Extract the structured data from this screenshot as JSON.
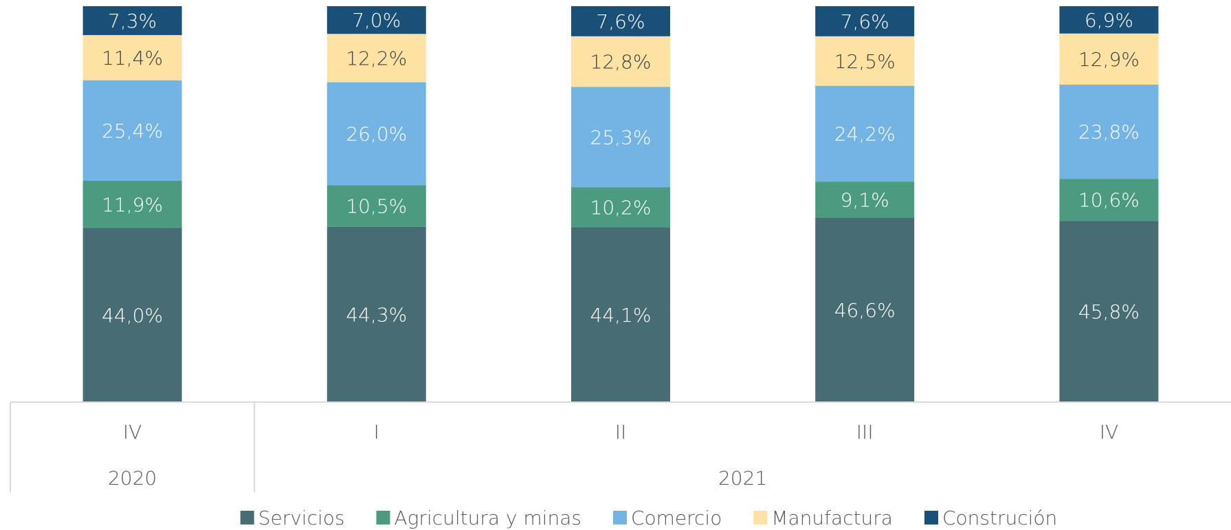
{
  "chart_data": {
    "type": "stacked_bar",
    "categories": [
      "IV",
      "I",
      "II",
      "III",
      "IV"
    ],
    "category_groups": [
      {
        "label": "2020",
        "count": 1
      },
      {
        "label": "2021",
        "count": 4
      }
    ],
    "ylim": [
      0,
      100
    ],
    "series": [
      {
        "name": "Servicios",
        "color": "#476c74",
        "label_color": "#ffffff",
        "values": [
          44.0,
          44.3,
          44.1,
          46.6,
          45.8
        ],
        "value_labels": [
          "44,0%",
          "44,3%",
          "44,1%",
          "46,6%",
          "45,8%"
        ]
      },
      {
        "name": "Agricultura y minas",
        "color": "#4a9b7f",
        "label_color": "#ffffff",
        "values": [
          11.9,
          10.5,
          10.2,
          9.1,
          10.6
        ],
        "value_labels": [
          "11,9%",
          "10,5%",
          "10,2%",
          "9,1%",
          "10,6%"
        ]
      },
      {
        "name": "Comercio",
        "color": "#74b4e4",
        "label_color": "#ffffff",
        "values": [
          25.4,
          26.0,
          25.3,
          24.2,
          23.8
        ],
        "value_labels": [
          "25,4%",
          "26,0%",
          "25,3%",
          "24,2%",
          "23,8%"
        ]
      },
      {
        "name": "Manufactura",
        "color": "#fde2a4",
        "label_color": "#404040",
        "values": [
          11.4,
          12.2,
          12.8,
          12.5,
          12.9
        ],
        "value_labels": [
          "11,4%",
          "12,2%",
          "12,8%",
          "12,5%",
          "12,9%"
        ]
      },
      {
        "name": "Construción",
        "color": "#1a4f78",
        "label_color": "#ffffff",
        "values": [
          7.3,
          7.0,
          7.6,
          7.6,
          6.9
        ],
        "value_labels": [
          "7,3%",
          "7,0%",
          "7,6%",
          "7,6%",
          "6,9%"
        ]
      }
    ]
  }
}
